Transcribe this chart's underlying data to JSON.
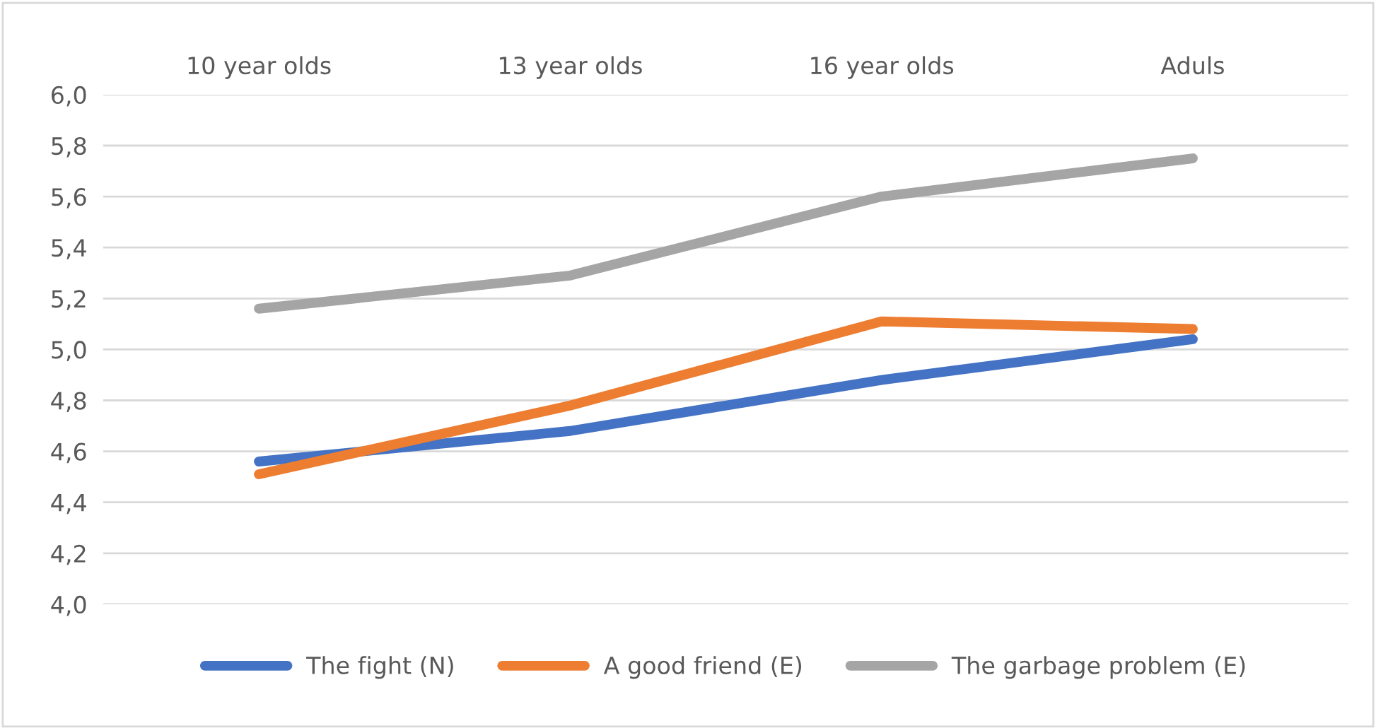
{
  "chart_data": {
    "type": "line",
    "categories": [
      "10 year olds",
      "13 year olds",
      "16 year olds",
      "Aduls"
    ],
    "series": [
      {
        "name": "The fight (N)",
        "color": "#4472c4",
        "values": [
          4.56,
          4.68,
          4.88,
          5.04
        ]
      },
      {
        "name": "A good friend (E)",
        "color": "#ed7d31",
        "values": [
          4.51,
          4.78,
          5.11,
          5.08
        ]
      },
      {
        "name": "The garbage problem (E)",
        "color": "#a5a5a5",
        "values": [
          5.16,
          5.29,
          5.6,
          5.75
        ]
      }
    ],
    "ylim": [
      4.0,
      6.0
    ],
    "yticks": [
      {
        "value": 4.0,
        "label": "4,0"
      },
      {
        "value": 4.2,
        "label": "4,2"
      },
      {
        "value": 4.4,
        "label": "4,4"
      },
      {
        "value": 4.6,
        "label": "4,6"
      },
      {
        "value": 4.8,
        "label": "4,8"
      },
      {
        "value": 5.0,
        "label": "5,0"
      },
      {
        "value": 5.2,
        "label": "5,2"
      },
      {
        "value": 5.4,
        "label": "5,4"
      },
      {
        "value": 5.6,
        "label": "5,6"
      },
      {
        "value": 5.8,
        "label": "5,8"
      },
      {
        "value": 6.0,
        "label": "6,0"
      }
    ],
    "grid": "y",
    "legend": "bottom",
    "marker": "none",
    "line_style": "solid"
  }
}
